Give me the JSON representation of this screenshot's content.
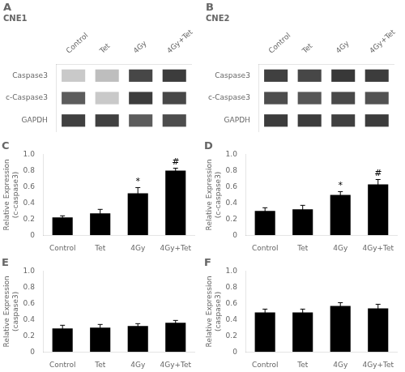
{
  "chart_data": [
    {
      "type": "heatmap",
      "title": "A",
      "subtitle": "CNE1",
      "categories": [
        "Control",
        "Tet",
        "4Gy",
        "4Gy+Tet"
      ],
      "row_labels": [
        "Caspase3",
        "c-Caspase3",
        "GAPDH"
      ],
      "cells": [
        [
          0.25,
          0.3,
          0.85,
          0.9
        ],
        [
          0.75,
          0.25,
          0.9,
          0.85
        ],
        [
          0.88,
          0.88,
          0.75,
          0.82
        ]
      ],
      "grid": false
    },
    {
      "type": "heatmap",
      "title": "B",
      "subtitle": "CNE2",
      "categories": [
        "Control",
        "Tet",
        "4Gy",
        "4Gy+Tet"
      ],
      "row_labels": [
        "Caspase3",
        "c-Caspase3",
        "GAPDH"
      ],
      "cells": [
        [
          0.88,
          0.85,
          0.92,
          0.9
        ],
        [
          0.82,
          0.78,
          0.84,
          0.8
        ],
        [
          0.9,
          0.9,
          0.88,
          0.9
        ]
      ],
      "grid": false
    },
    {
      "type": "bar",
      "title": "C",
      "categories": [
        "Control",
        "Tet",
        "4Gy",
        "4Gy+Tet"
      ],
      "values": [
        0.22,
        0.27,
        0.52,
        0.8
      ],
      "errors": [
        0.02,
        0.05,
        0.07,
        0.03
      ],
      "color": "#000000",
      "ylabel": "Relative Expression\n(c-caspase3)",
      "ylim": [
        0,
        1
      ],
      "yticks": [
        0,
        0.2,
        0.4,
        0.6,
        0.8,
        1
      ],
      "grid": false,
      "annotations": [
        {
          "category": "4Gy",
          "text": "*"
        },
        {
          "category": "4Gy+Tet",
          "text": "#"
        }
      ]
    },
    {
      "type": "bar",
      "title": "D",
      "categories": [
        "Control",
        "Tet",
        "4Gy",
        "4Gy+Tet"
      ],
      "values": [
        0.3,
        0.32,
        0.5,
        0.63
      ],
      "errors": [
        0.04,
        0.05,
        0.04,
        0.06
      ],
      "color": "#000000",
      "ylabel": "Relative Expression\n(c-caspase3)",
      "ylim": [
        0,
        1
      ],
      "yticks": [
        0,
        0.2,
        0.4,
        0.6,
        0.8,
        1
      ],
      "grid": false,
      "annotations": [
        {
          "category": "4Gy",
          "text": "*"
        },
        {
          "category": "4Gy+Tet",
          "text": "#"
        }
      ]
    },
    {
      "type": "bar",
      "title": "E",
      "categories": [
        "Control",
        "Tet",
        "4Gy",
        "4Gy+Tet"
      ],
      "values": [
        0.29,
        0.3,
        0.32,
        0.36
      ],
      "errors": [
        0.04,
        0.04,
        0.03,
        0.03
      ],
      "color": "#000000",
      "ylabel": "Relative Expression\n(caspase3)",
      "ylim": [
        0,
        1
      ],
      "yticks": [
        0,
        0.2,
        0.4,
        0.6,
        0.8,
        1
      ],
      "grid": false,
      "annotations": []
    },
    {
      "type": "bar",
      "title": "F",
      "categories": [
        "Control",
        "Tet",
        "4Gy",
        "4Gy+Tet"
      ],
      "values": [
        0.49,
        0.49,
        0.57,
        0.54
      ],
      "errors": [
        0.04,
        0.04,
        0.04,
        0.05
      ],
      "color": "#000000",
      "ylabel": "Relative Expression\n(caspase3)",
      "ylim": [
        0,
        1
      ],
      "yticks": [
        0,
        0.2,
        0.4,
        0.6,
        0.8,
        1
      ],
      "grid": false,
      "annotations": []
    }
  ]
}
